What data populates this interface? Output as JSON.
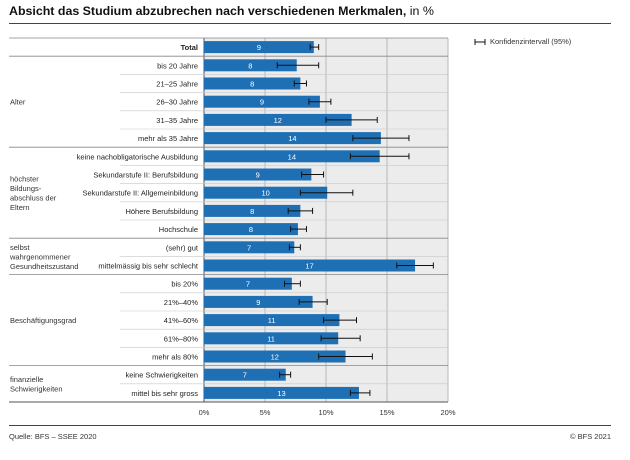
{
  "title": {
    "main": "Absicht das Studium abzubrechen nach verschiedenen Merkmalen,",
    "unit": "in %"
  },
  "legend": {
    "ci_label": "Konfidenzintervall (95%)"
  },
  "footer": {
    "source": "Quelle: BFS – SSEE 2020",
    "copyright": "© BFS 2021"
  },
  "colors": {
    "bar": "#1f6fb5",
    "panel": "#ececec",
    "grid": "#b8b8b8",
    "axis": "#555555"
  },
  "chart_data": {
    "type": "bar",
    "orientation": "horizontal",
    "x_range": [
      0,
      20
    ],
    "x_ticks": [
      "0%",
      "5%",
      "10%",
      "15%",
      "20%"
    ],
    "groups": [
      {
        "label": "",
        "rows": [
          {
            "label": "Total",
            "value": 9,
            "lo": 8.7,
            "hi": 9.4,
            "bold": true
          }
        ]
      },
      {
        "label": "Alter",
        "rows": [
          {
            "label": "bis 20 Jahre",
            "value": 7.6,
            "display": "8",
            "lo": 6.0,
            "hi": 9.4
          },
          {
            "label": "21–25 Jahre",
            "value": 7.9,
            "display": "8",
            "lo": 7.4,
            "hi": 8.4
          },
          {
            "label": "26–30 Jahre",
            "value": 9.5,
            "display": "9",
            "lo": 8.6,
            "hi": 10.4
          },
          {
            "label": "31–35 Jahre",
            "value": 12.1,
            "display": "12",
            "lo": 10.0,
            "hi": 14.2
          },
          {
            "label": "mehr als 35 Jahre",
            "value": 14.5,
            "display": "14",
            "lo": 12.2,
            "hi": 16.8
          }
        ]
      },
      {
        "label": "höchster Bildungs-abschluss der Eltern",
        "rows": [
          {
            "label": "keine nachobligatorische Ausbildung",
            "value": 14.4,
            "display": "14",
            "lo": 12.0,
            "hi": 16.8
          },
          {
            "label": "Sekundarstufe II: Berufsbildung",
            "value": 8.8,
            "display": "9",
            "lo": 8.0,
            "hi": 9.8
          },
          {
            "label": "Sekundarstufe II: Allgemeinbildung",
            "value": 10.1,
            "display": "10",
            "lo": 7.9,
            "hi": 12.2
          },
          {
            "label": "Höhere Berufsbildung",
            "value": 7.9,
            "display": "8",
            "lo": 6.9,
            "hi": 8.9
          },
          {
            "label": "Hochschule",
            "value": 7.7,
            "display": "8",
            "lo": 7.1,
            "hi": 8.4
          }
        ]
      },
      {
        "label": "selbst wahrgenommener Gesundheitszustand",
        "rows": [
          {
            "label": "(sehr) gut",
            "value": 7.4,
            "display": "7",
            "lo": 7.0,
            "hi": 7.9
          },
          {
            "label": "mittelmässig bis sehr schlecht",
            "value": 17.3,
            "display": "17",
            "lo": 15.8,
            "hi": 18.8
          }
        ]
      },
      {
        "label": "Beschäftigungsgrad",
        "rows": [
          {
            "label": "bis 20%",
            "value": 7.2,
            "display": "7",
            "lo": 6.6,
            "hi": 7.9
          },
          {
            "label": "21%–40%",
            "value": 8.9,
            "display": "9",
            "lo": 7.8,
            "hi": 10.1
          },
          {
            "label": "41%–60%",
            "value": 11.1,
            "display": "11",
            "lo": 9.8,
            "hi": 12.5
          },
          {
            "label": "61%–80%",
            "value": 11.0,
            "display": "11",
            "lo": 9.6,
            "hi": 12.8
          },
          {
            "label": "mehr als 80%",
            "value": 11.6,
            "display": "12",
            "lo": 9.4,
            "hi": 13.8
          }
        ]
      },
      {
        "label": "finanzielle Schwierigkeiten",
        "rows": [
          {
            "label": "keine Schwierigkeiten",
            "value": 6.7,
            "display": "7",
            "lo": 6.2,
            "hi": 7.1
          },
          {
            "label": "mittel bis sehr gross",
            "value": 12.7,
            "display": "13",
            "lo": 12.0,
            "hi": 13.6
          }
        ]
      }
    ]
  }
}
